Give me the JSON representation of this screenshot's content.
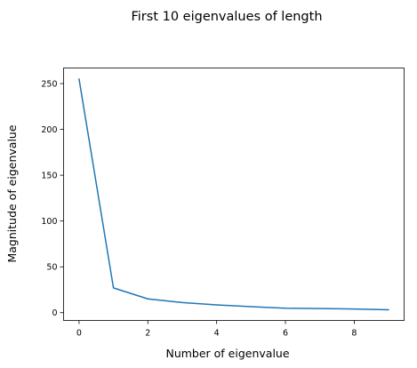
{
  "chart_data": {
    "type": "line",
    "title": "First 10 eigenvalues of length",
    "xlabel": "Number of eigenvalue",
    "ylabel": "Magnitude of eigenvalue",
    "xlim": [
      -0.45,
      9.45
    ],
    "ylim": [
      -8.5,
      267
    ],
    "x_ticks": [
      0,
      2,
      4,
      6,
      8
    ],
    "y_ticks": [
      0,
      50,
      100,
      150,
      200,
      250
    ],
    "grid": false,
    "series": [
      {
        "x": [
          0,
          1,
          2,
          3,
          4,
          5,
          6,
          7,
          8,
          9
        ],
        "values": [
          255,
          27,
          15,
          11,
          8.5,
          6.5,
          4.8,
          4.5,
          4,
          3.2
        ],
        "color": "#1f77b4"
      }
    ]
  }
}
